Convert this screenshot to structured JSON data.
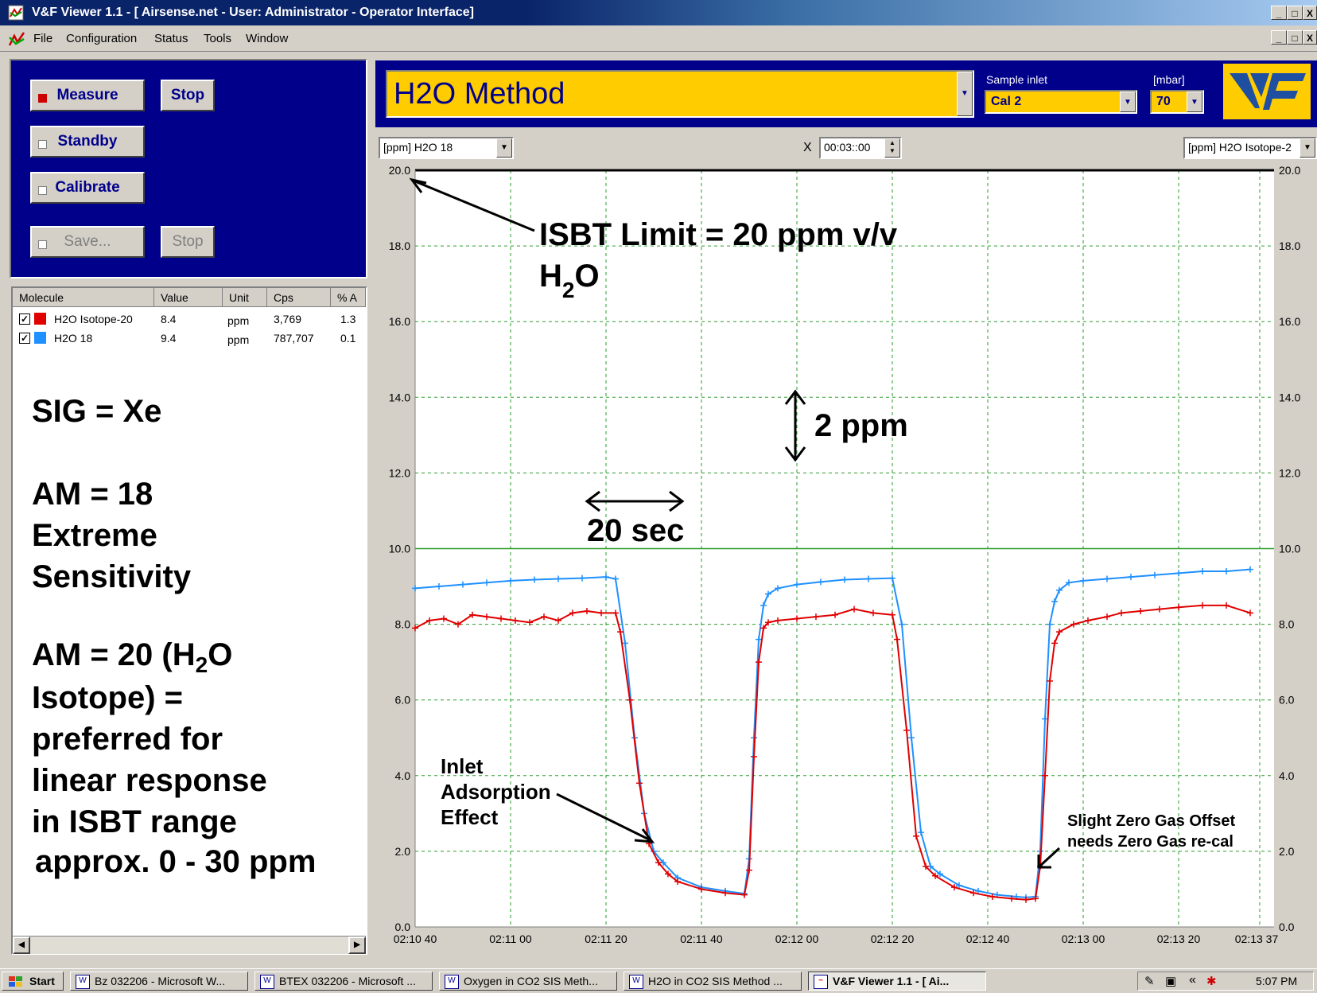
{
  "window": {
    "title": "V&F Viewer 1.1 - [  Airsense.net - User: Administrator - Operator Interface]",
    "min": "_",
    "max": "□",
    "close": "X"
  },
  "menu": [
    "File",
    "Configuration",
    "Status",
    "Tools",
    "Window"
  ],
  "controls": {
    "measure": "Measure",
    "stop1": "Stop",
    "standby": "Standby",
    "calibrate": "Calibrate",
    "save": "Save...",
    "stop2": "Stop"
  },
  "molecule_table": {
    "headers": [
      "Molecule",
      "Value",
      "Unit",
      "Cps",
      "% A"
    ],
    "rows": [
      {
        "checked": "✓",
        "color": "#e00000",
        "molecule": "H2O Isotope-20",
        "value": "8.4",
        "unit": "ppm",
        "cps": "3,769",
        "pct": "1.3"
      },
      {
        "checked": "✓",
        "color": "#1e90ff",
        "molecule": "H2O 18",
        "value": "9.4",
        "unit": "ppm",
        "cps": "787,707",
        "pct": "0.1"
      }
    ]
  },
  "notes": {
    "sig": "SIG = Xe",
    "am18_line1": "AM = 18",
    "am18_line2": "Extreme",
    "am18_line3": "Sensitivity",
    "am20_line1a": "AM = 20 (H",
    "am20_line1sub": "2",
    "am20_line1b": "O",
    "am20_line2": "Isotope) =",
    "am20_line3": "preferred for",
    "am20_line4": "linear response",
    "am20_line5": "in ISBT range",
    "range": "approx. 0 - 30 ppm"
  },
  "method": {
    "name": "H2O Method",
    "sample_inlet_label": "Sample inlet",
    "sample_inlet_value": "Cal 2",
    "pressure_label": "[mbar]",
    "pressure_value": "70"
  },
  "chart_toolbar": {
    "left_select": "[ppm] H2O 18",
    "x_label": "X",
    "time_value": "00:03::00",
    "right_select": "[ppm] H2O Isotope-2"
  },
  "chart_data": {
    "type": "line",
    "x_tick_labels": [
      "02:10 40",
      "02:11 00",
      "02:11 20",
      "02:11 40",
      "02:12 00",
      "02:12 20",
      "02:12 40",
      "02:13 00",
      "02:13 20",
      "02:13 37"
    ],
    "x_tick_seconds": [
      0,
      20,
      40,
      60,
      80,
      100,
      120,
      140,
      160,
      177
    ],
    "xlim": [
      0,
      180
    ],
    "y_tick_labels": [
      "0.0",
      "2.0",
      "4.0",
      "6.0",
      "8.0",
      "10.0",
      "12.0",
      "14.0",
      "16.0",
      "18.0",
      "20.0"
    ],
    "ylim": [
      0,
      20
    ],
    "series": [
      {
        "name": "H2O 18",
        "color": "#1e90ff",
        "x": [
          0,
          5,
          10,
          15,
          20,
          25,
          30,
          35,
          40,
          42,
          44,
          46,
          48,
          50,
          52,
          55,
          60,
          65,
          69,
          70,
          71,
          72,
          73,
          74,
          76,
          80,
          85,
          90,
          95,
          100,
          102,
          104,
          106,
          108,
          110,
          114,
          118,
          122,
          126,
          128,
          130,
          131,
          132,
          133,
          134,
          135,
          137,
          140,
          145,
          150,
          155,
          160,
          165,
          170,
          175
        ],
        "y": [
          8.95,
          9.0,
          9.05,
          9.1,
          9.15,
          9.18,
          9.2,
          9.22,
          9.25,
          9.2,
          7.5,
          5.0,
          3.0,
          2.0,
          1.7,
          1.3,
          1.05,
          0.95,
          0.88,
          1.8,
          5.0,
          7.6,
          8.5,
          8.8,
          8.95,
          9.05,
          9.12,
          9.18,
          9.2,
          9.22,
          8.0,
          5.0,
          2.5,
          1.6,
          1.4,
          1.1,
          0.95,
          0.85,
          0.8,
          0.78,
          0.8,
          2.0,
          5.5,
          8.0,
          8.6,
          8.9,
          9.1,
          9.15,
          9.2,
          9.25,
          9.3,
          9.35,
          9.4,
          9.4,
          9.45
        ]
      },
      {
        "name": "H2O Isotope-20",
        "color": "#e00000",
        "x": [
          0,
          3,
          6,
          9,
          12,
          15,
          18,
          21,
          24,
          27,
          30,
          33,
          36,
          39,
          42,
          43,
          45,
          47,
          49,
          51,
          53,
          55,
          60,
          65,
          69,
          70,
          71,
          72,
          73,
          74,
          76,
          80,
          84,
          88,
          92,
          96,
          100,
          101,
          103,
          105,
          107,
          109,
          113,
          117,
          121,
          125,
          128,
          130,
          131,
          132,
          133,
          134,
          135,
          138,
          141,
          145,
          148,
          152,
          156,
          160,
          165,
          170,
          175
        ],
        "y": [
          7.9,
          8.1,
          8.15,
          8.0,
          8.25,
          8.2,
          8.15,
          8.1,
          8.05,
          8.2,
          8.1,
          8.3,
          8.35,
          8.3,
          8.3,
          7.8,
          6.0,
          3.8,
          2.2,
          1.7,
          1.4,
          1.2,
          1.0,
          0.9,
          0.85,
          1.5,
          4.5,
          7.0,
          7.9,
          8.05,
          8.1,
          8.15,
          8.2,
          8.25,
          8.4,
          8.3,
          8.25,
          7.6,
          5.2,
          2.4,
          1.6,
          1.35,
          1.05,
          0.9,
          0.8,
          0.75,
          0.72,
          0.75,
          1.6,
          4.0,
          6.5,
          7.5,
          7.8,
          8.0,
          8.1,
          8.2,
          8.3,
          8.35,
          8.4,
          8.45,
          8.5,
          8.5,
          8.3
        ]
      }
    ],
    "annotations": {
      "isbt_line1": "ISBT Limit = 20 ppm v/v",
      "isbt_line2a": "H",
      "isbt_line2sub": "2",
      "isbt_line2b": "O",
      "ppm_span": "2 ppm",
      "sec_span": "20 sec",
      "inlet1": "Inlet",
      "inlet2": "Adsorption",
      "inlet3": "Effect",
      "zero1": "Slight Zero Gas Offset",
      "zero2": "needs Zero Gas re-cal"
    },
    "limit_value": 20,
    "reference_value": 10
  },
  "taskbar": {
    "start": "Start",
    "tasks": [
      "Bz 032206 - Microsoft W...",
      "BTEX 032206 - Microsoft ...",
      "Oxygen in CO2 SIS Meth...",
      "H2O in CO2 SIS Method ...",
      "V&F Viewer 1.1 - [  Ai..."
    ],
    "clock": "5:07 PM",
    "tray_chevron": "«"
  }
}
